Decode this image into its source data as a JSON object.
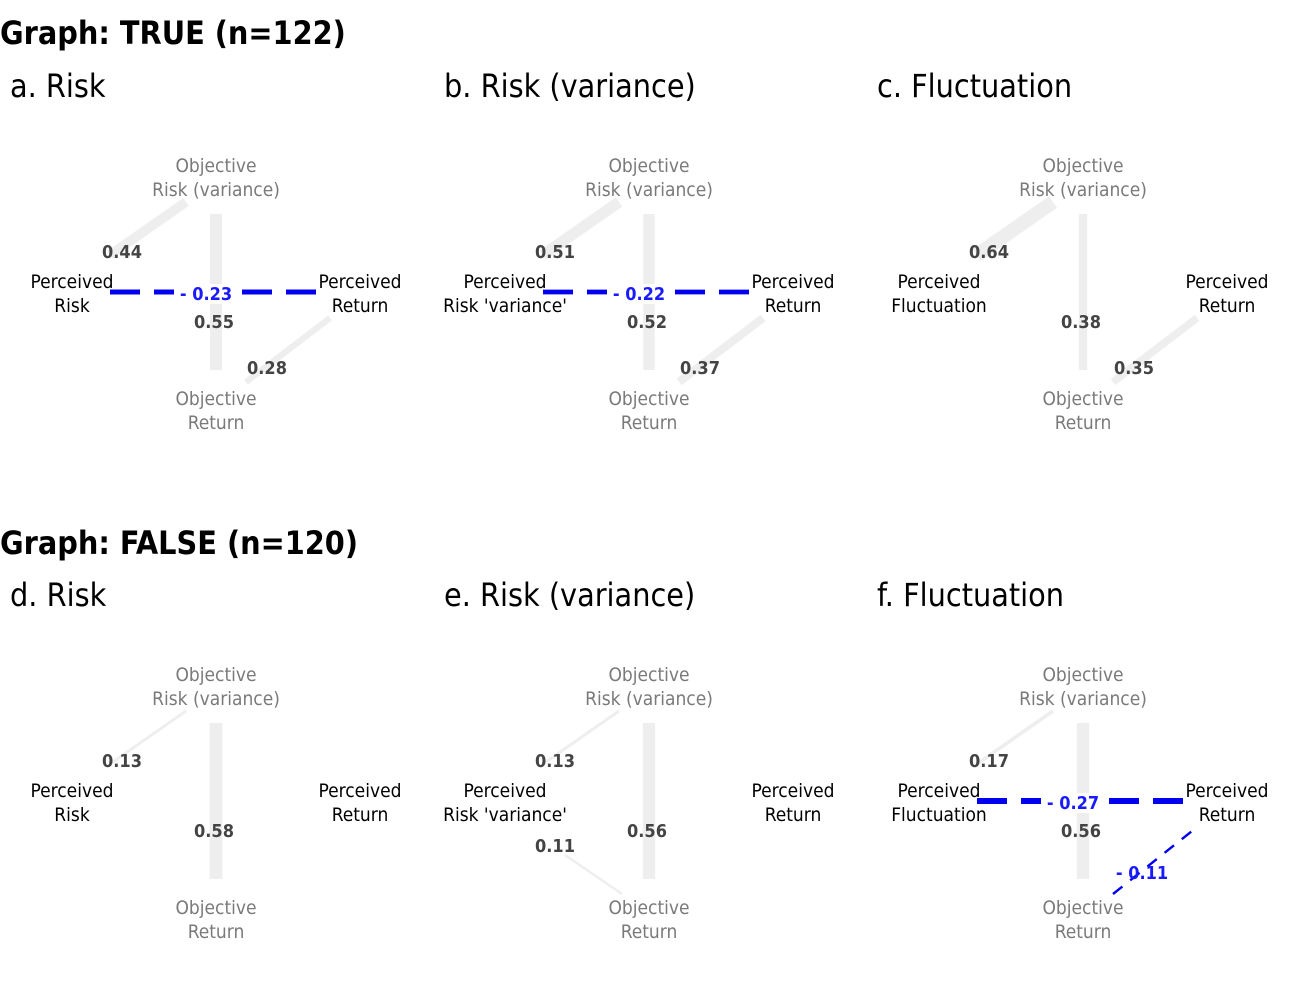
{
  "colors": {
    "positive_edge": "#eeeeee",
    "negative_edge": "#0000ee",
    "objective_node_text": "#7a7a7a",
    "perceived_node_text": "#000000"
  },
  "groups": [
    {
      "title": "Graph: TRUE (n=122)",
      "panels": [
        {
          "title": "a. Risk",
          "nodes": {
            "obj_risk": [
              "Objective",
              "Risk (variance)"
            ],
            "perceived": [
              "Perceived",
              "Risk"
            ],
            "perceived_return": [
              "Perceived",
              "Return"
            ],
            "obj_return": [
              "Objective",
              "Return"
            ]
          },
          "edges": [
            {
              "from": "obj_risk",
              "to": "perceived",
              "weight": 0.44,
              "label": "0.44"
            },
            {
              "from": "obj_risk",
              "to": "obj_return",
              "weight": 0.55,
              "label": "0.55"
            },
            {
              "from": "obj_return",
              "to": "perceived_return",
              "weight": 0.28,
              "label": "0.28"
            },
            {
              "from": "perceived",
              "to": "perceived_return",
              "weight": -0.23,
              "label": "- 0.23"
            }
          ]
        },
        {
          "title": "b. Risk (variance)",
          "nodes": {
            "obj_risk": [
              "Objective",
              "Risk (variance)"
            ],
            "perceived": [
              "Perceived",
              "Risk 'variance'"
            ],
            "perceived_return": [
              "Perceived",
              "Return"
            ],
            "obj_return": [
              "Objective",
              "Return"
            ]
          },
          "edges": [
            {
              "from": "obj_risk",
              "to": "perceived",
              "weight": 0.51,
              "label": "0.51"
            },
            {
              "from": "obj_risk",
              "to": "obj_return",
              "weight": 0.52,
              "label": "0.52"
            },
            {
              "from": "obj_return",
              "to": "perceived_return",
              "weight": 0.37,
              "label": "0.37"
            },
            {
              "from": "perceived",
              "to": "perceived_return",
              "weight": -0.22,
              "label": "- 0.22"
            }
          ]
        },
        {
          "title": "c. Fluctuation",
          "nodes": {
            "obj_risk": [
              "Objective",
              "Risk (variance)"
            ],
            "perceived": [
              "Perceived",
              "Fluctuation"
            ],
            "perceived_return": [
              "Perceived",
              "Return"
            ],
            "obj_return": [
              "Objective",
              "Return"
            ]
          },
          "edges": [
            {
              "from": "obj_risk",
              "to": "perceived",
              "weight": 0.64,
              "label": "0.64"
            },
            {
              "from": "obj_risk",
              "to": "obj_return",
              "weight": 0.38,
              "label": "0.38"
            },
            {
              "from": "obj_return",
              "to": "perceived_return",
              "weight": 0.35,
              "label": "0.35"
            }
          ]
        }
      ]
    },
    {
      "title": "Graph: FALSE (n=120)",
      "panels": [
        {
          "title": "d. Risk",
          "nodes": {
            "obj_risk": [
              "Objective",
              "Risk (variance)"
            ],
            "perceived": [
              "Perceived",
              "Risk"
            ],
            "perceived_return": [
              "Perceived",
              "Return"
            ],
            "obj_return": [
              "Objective",
              "Return"
            ]
          },
          "edges": [
            {
              "from": "obj_risk",
              "to": "perceived",
              "weight": 0.13,
              "label": "0.13"
            },
            {
              "from": "obj_risk",
              "to": "obj_return",
              "weight": 0.58,
              "label": "0.58"
            }
          ]
        },
        {
          "title": "e. Risk (variance)",
          "nodes": {
            "obj_risk": [
              "Objective",
              "Risk (variance)"
            ],
            "perceived": [
              "Perceived",
              "Risk 'variance'"
            ],
            "perceived_return": [
              "Perceived",
              "Return"
            ],
            "obj_return": [
              "Objective",
              "Return"
            ]
          },
          "edges": [
            {
              "from": "obj_risk",
              "to": "perceived",
              "weight": 0.13,
              "label": "0.13"
            },
            {
              "from": "obj_risk",
              "to": "obj_return",
              "weight": 0.56,
              "label": "0.56"
            },
            {
              "from": "perceived",
              "to": "obj_return",
              "weight": 0.11,
              "label": "0.11"
            }
          ]
        },
        {
          "title": "f. Fluctuation",
          "nodes": {
            "obj_risk": [
              "Objective",
              "Risk (variance)"
            ],
            "perceived": [
              "Perceived",
              "Fluctuation"
            ],
            "perceived_return": [
              "Perceived",
              "Return"
            ],
            "obj_return": [
              "Objective",
              "Return"
            ]
          },
          "edges": [
            {
              "from": "obj_risk",
              "to": "perceived",
              "weight": 0.17,
              "label": "0.17"
            },
            {
              "from": "obj_risk",
              "to": "obj_return",
              "weight": 0.56,
              "label": "0.56"
            },
            {
              "from": "perceived",
              "to": "perceived_return",
              "weight": -0.27,
              "label": "- 0.27"
            },
            {
              "from": "obj_return",
              "to": "perceived_return",
              "weight": -0.11,
              "label": "- 0.11"
            }
          ]
        }
      ]
    }
  ]
}
